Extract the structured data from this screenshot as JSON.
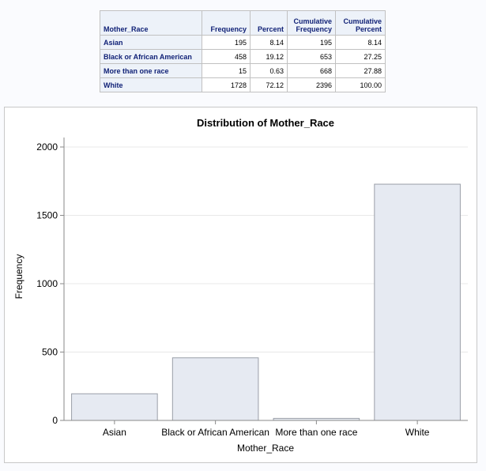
{
  "table": {
    "headers": [
      {
        "lines": [
          "Mother_Race"
        ]
      },
      {
        "lines": [
          "Frequency"
        ]
      },
      {
        "lines": [
          "Percent"
        ]
      },
      {
        "lines": [
          "Cumulative",
          "Frequency"
        ]
      },
      {
        "lines": [
          "Cumulative",
          "Percent"
        ]
      }
    ],
    "rows": [
      {
        "label": "Asian",
        "frequency": "195",
        "percent": "8.14",
        "cum_frequency": "195",
        "cum_percent": "8.14"
      },
      {
        "label": "Black or African American",
        "frequency": "458",
        "percent": "19.12",
        "cum_frequency": "653",
        "cum_percent": "27.25"
      },
      {
        "label": "More than one race",
        "frequency": "15",
        "percent": "0.63",
        "cum_frequency": "668",
        "cum_percent": "27.88"
      },
      {
        "label": "White",
        "frequency": "1728",
        "percent": "72.12",
        "cum_frequency": "2396",
        "cum_percent": "100.00"
      }
    ]
  },
  "chart_data": {
    "type": "bar",
    "title": "Distribution of Mother_Race",
    "xlabel": "Mother_Race",
    "ylabel": "Frequency",
    "categories": [
      "Asian",
      "Black or African American",
      "More than one race",
      "White"
    ],
    "values": [
      195,
      458,
      15,
      1728
    ],
    "ylim": [
      0,
      2000
    ],
    "yticks": [
      0,
      500,
      1000,
      1500,
      2000
    ],
    "grid": true,
    "legend": "none",
    "bar_fill": "#e6eaf2",
    "bar_stroke": "#9a9fa8",
    "grid_color": "#e8e8e8"
  }
}
